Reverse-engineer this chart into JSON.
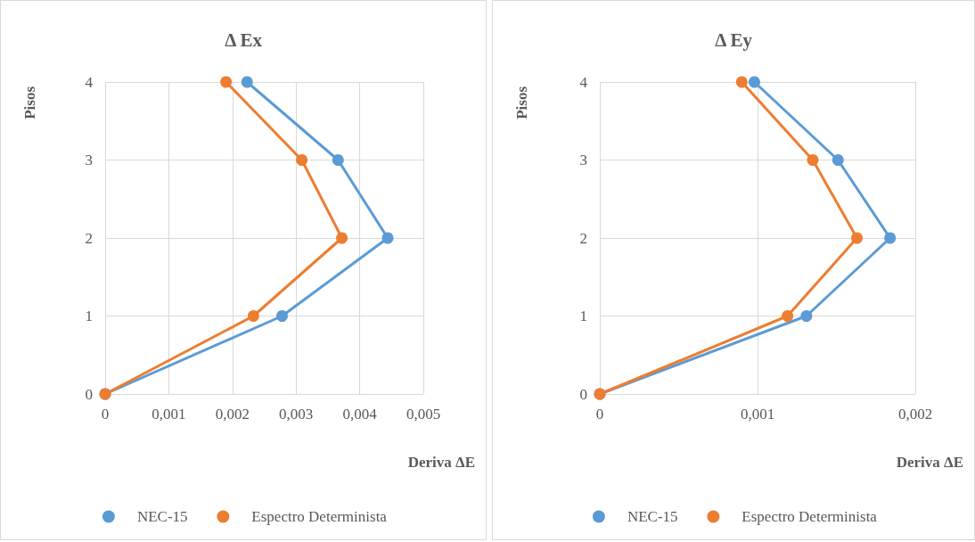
{
  "chart_data": [
    {
      "type": "line",
      "title": "Δ Ex",
      "xlabel": "Deriva ΔE",
      "ylabel": "Pisos",
      "xlim": [
        0,
        0.005
      ],
      "xticks": [
        0,
        {
          "value": 0.001,
          "label": "0,001"
        },
        {
          "value": 0.002,
          "label": "0,002"
        },
        {
          "value": 0.003,
          "label": "0,003"
        },
        {
          "value": 0.004,
          "label": "0,004"
        },
        {
          "value": 0.005,
          "label": "0,005"
        }
      ],
      "ylim": [
        0,
        4
      ],
      "yticks": [
        0,
        1,
        2,
        3,
        4
      ],
      "grid": true,
      "legend": "bottom",
      "marker": "circle",
      "line_style": "solid",
      "series": [
        {
          "name": "NEC-15",
          "color": "#5b9bd5",
          "x": [
            0,
            0.00278,
            0.00444,
            0.00366,
            0.00223
          ],
          "values": [
            0,
            1,
            2,
            3,
            4
          ]
        },
        {
          "name": "Espectro Determinista",
          "color": "#ed7d31",
          "x": [
            0,
            0.00233,
            0.00372,
            0.00309,
            0.0019
          ],
          "values": [
            0,
            1,
            2,
            3,
            4
          ]
        }
      ]
    },
    {
      "type": "line",
      "title": "Δ Ey",
      "xlabel": "Deriva ΔE",
      "ylabel": "Pisos",
      "xlim": [
        0,
        0.002
      ],
      "xticks": [
        0,
        {
          "value": 0.001,
          "label": "0,001"
        },
        {
          "value": 0.002,
          "label": "0,002"
        }
      ],
      "ylim": [
        0,
        4
      ],
      "yticks": [
        0,
        1,
        2,
        3,
        4
      ],
      "grid": true,
      "legend": "bottom",
      "marker": "circle",
      "line_style": "solid",
      "series": [
        {
          "name": "NEC-15",
          "color": "#5b9bd5",
          "x": [
            0,
            0.00131,
            0.00184,
            0.00151,
            0.00098
          ],
          "values": [
            0,
            1,
            2,
            3,
            4
          ]
        },
        {
          "name": "Espectro Determinista",
          "color": "#ed7d31",
          "x": [
            0,
            0.00119,
            0.00163,
            0.00135,
            0.0009
          ],
          "values": [
            0,
            1,
            2,
            3,
            4
          ]
        }
      ]
    }
  ]
}
